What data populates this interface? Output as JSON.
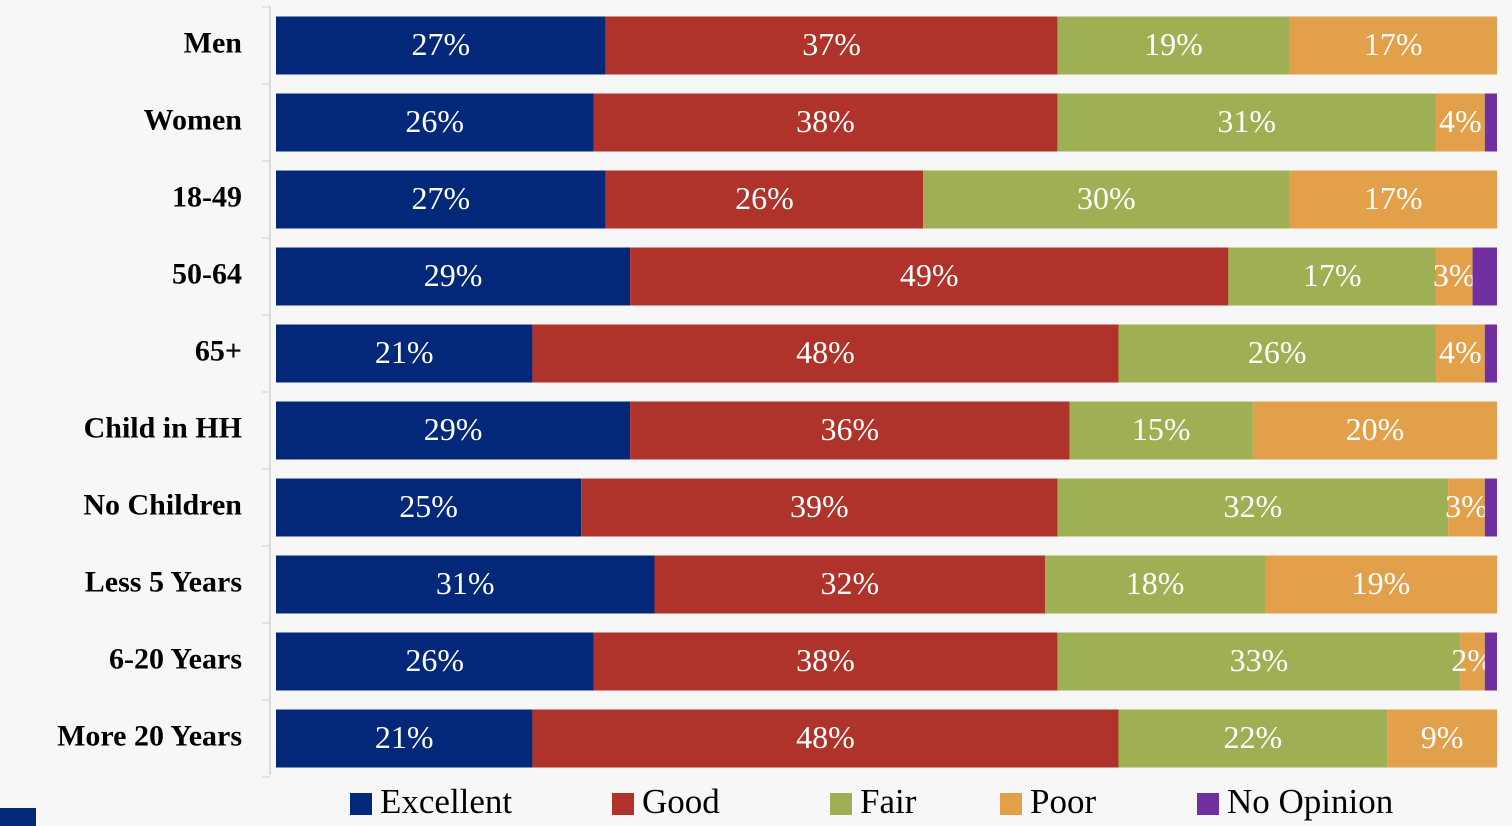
{
  "chart_data": {
    "type": "stacked-bar-horizontal",
    "categories": [
      "Men",
      "Women",
      "18-49",
      "50-64",
      "65+",
      "Child in HH",
      "No Children",
      "Less 5 Years",
      "6-20 Years",
      "More 20 Years"
    ],
    "xlim": [
      0,
      100
    ],
    "series": [
      {
        "name": "Excellent",
        "color": "#03287a",
        "values": [
          27,
          26,
          27,
          29,
          21,
          29,
          25,
          31,
          26,
          21
        ],
        "value_labels": [
          "27%",
          "26%",
          "27%",
          "29%",
          "21%",
          "29%",
          "25%",
          "31%",
          "26%",
          "21%"
        ]
      },
      {
        "name": "Good",
        "color": "#b0332b",
        "values": [
          37,
          38,
          26,
          49,
          48,
          36,
          39,
          32,
          38,
          48
        ],
        "value_labels": [
          "37%",
          "38%",
          "26%",
          "49%",
          "48%",
          "36%",
          "39%",
          "32%",
          "38%",
          "48%"
        ]
      },
      {
        "name": "Fair",
        "color": "#9eb053",
        "values": [
          19,
          31,
          30,
          17,
          26,
          15,
          32,
          18,
          33,
          22
        ],
        "value_labels": [
          "19%",
          "31%",
          "30%",
          "17%",
          "26%",
          "15%",
          "32%",
          "18%",
          "33%",
          "22%"
        ]
      },
      {
        "name": "Poor",
        "color": "#e3a04a",
        "values": [
          17,
          4,
          17,
          3,
          4,
          20,
          3,
          19,
          2,
          9
        ],
        "value_labels": [
          "17%",
          "4%",
          "17%",
          "3%",
          "4%",
          "20%",
          "3%",
          "19%",
          "2%",
          "9%"
        ]
      },
      {
        "name": "No Opinion",
        "color": "#7030a0",
        "values": [
          0,
          1,
          0,
          2,
          1,
          0,
          1,
          0,
          1,
          0
        ]
      }
    ],
    "legend": "bottom"
  }
}
